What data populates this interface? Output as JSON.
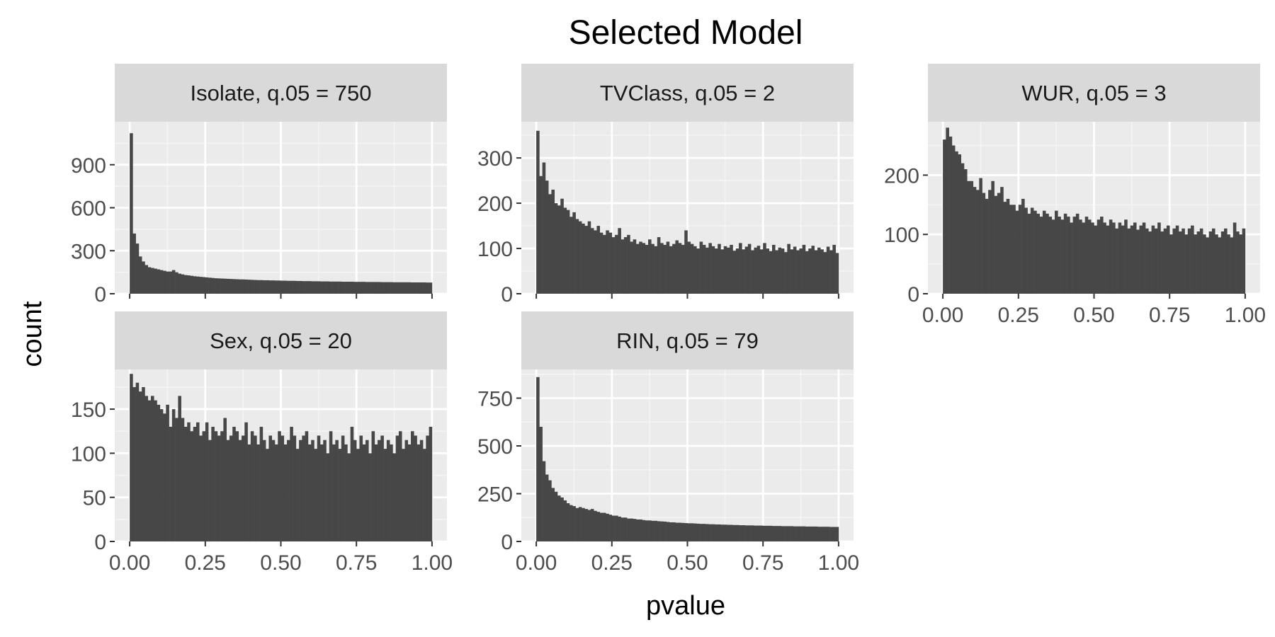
{
  "chart_data": {
    "type": "bar",
    "title": "Selected Model",
    "xlabel": "pvalue",
    "ylabel": "count",
    "grid": true,
    "x_ticks": [
      "0.00",
      "0.25",
      "0.50",
      "0.75",
      "1.00"
    ],
    "x_tick_values": [
      0,
      0.25,
      0.5,
      0.75,
      1.0
    ],
    "xlim": [
      0,
      1
    ],
    "bin_count": 100,
    "panels": [
      {
        "label": "Isolate, q.05 = 750",
        "ylim": [
          0,
          1200
        ],
        "y_ticks": [
          0,
          300,
          600,
          900
        ],
        "y_tick_labels": [
          "0",
          "300",
          "600",
          "900"
        ],
        "show_x_labels": false
      },
      {
        "label": "TVClass, q.05 = 2",
        "ylim": [
          0,
          380
        ],
        "y_ticks": [
          0,
          100,
          200,
          300
        ],
        "y_tick_labels": [
          "0",
          "100",
          "200",
          "300"
        ],
        "show_x_labels": false
      },
      {
        "label": "WUR, q.05 = 3",
        "ylim": [
          0,
          290
        ],
        "y_ticks": [
          0,
          100,
          200
        ],
        "y_tick_labels": [
          "0",
          "100",
          "200"
        ],
        "show_x_labels": true
      },
      {
        "label": "Sex, q.05 = 20",
        "ylim": [
          0,
          195
        ],
        "y_ticks": [
          0,
          50,
          100,
          150
        ],
        "y_tick_labels": [
          "0",
          "50",
          "100",
          "150"
        ],
        "show_x_labels": true
      },
      {
        "label": "RIN, q.05 = 79",
        "ylim": [
          0,
          900
        ],
        "y_ticks": [
          0,
          250,
          500,
          750
        ],
        "y_tick_labels": [
          "0",
          "250",
          "500",
          "750"
        ],
        "show_x_labels": true
      }
    ],
    "series": [
      {
        "values": [
          1120,
          420,
          350,
          260,
          225,
          200,
          185,
          180,
          175,
          170,
          165,
          160,
          155,
          155,
          165,
          150,
          140,
          135,
          130,
          128,
          125,
          122,
          120,
          118,
          116,
          114,
          112,
          110,
          108,
          107,
          106,
          105,
          104,
          103,
          102,
          101,
          100,
          100,
          99,
          98,
          97,
          96,
          95,
          95,
          94,
          94,
          93,
          93,
          92,
          92,
          91,
          91,
          90,
          90,
          90,
          89,
          89,
          88,
          88,
          88,
          87,
          87,
          87,
          86,
          86,
          86,
          85,
          85,
          85,
          85,
          84,
          84,
          84,
          84,
          83,
          83,
          83,
          83,
          82,
          82,
          82,
          82,
          82,
          81,
          81,
          81,
          81,
          80,
          80,
          80,
          80,
          80,
          80,
          79,
          79,
          79,
          79,
          79,
          78,
          78
        ]
      },
      {
        "values": [
          360,
          260,
          290,
          250,
          220,
          230,
          200,
          195,
          210,
          190,
          185,
          170,
          180,
          165,
          160,
          155,
          150,
          160,
          145,
          140,
          150,
          135,
          130,
          140,
          135,
          125,
          130,
          145,
          120,
          125,
          130,
          115,
          120,
          110,
          115,
          112,
          108,
          120,
          110,
          105,
          125,
          112,
          108,
          115,
          105,
          110,
          118,
          112,
          108,
          140,
          115,
          110,
          105,
          100,
          115,
          108,
          102,
          112,
          105,
          100,
          110,
          98,
          105,
          102,
          108,
          95,
          100,
          112,
          98,
          104,
          110,
          96,
          102,
          106,
          98,
          112,
          100,
          94,
          108,
          96,
          102,
          100,
          92,
          110,
          98,
          104,
          96,
          100,
          108,
          94,
          100,
          106,
          96,
          102,
          98,
          92,
          104,
          96,
          108,
          90
        ]
      },
      {
        "values": [
          260,
          280,
          265,
          250,
          240,
          235,
          220,
          210,
          190,
          190,
          180,
          175,
          195,
          170,
          160,
          175,
          190,
          165,
          170,
          180,
          155,
          160,
          150,
          150,
          140,
          150,
          160,
          145,
          135,
          145,
          140,
          135,
          130,
          140,
          135,
          130,
          125,
          140,
          130,
          125,
          135,
          130,
          120,
          130,
          135,
          125,
          120,
          130,
          125,
          120,
          115,
          125,
          130,
          120,
          115,
          125,
          120,
          110,
          120,
          115,
          125,
          110,
          115,
          120,
          108,
          115,
          120,
          110,
          105,
          115,
          110,
          120,
          105,
          110,
          115,
          100,
          110,
          115,
          105,
          110,
          100,
          110,
          115,
          100,
          105,
          110,
          100,
          95,
          105,
          110,
          100,
          95,
          105,
          110,
          100,
          95,
          120,
          105,
          100,
          110
        ]
      },
      {
        "values": [
          190,
          175,
          180,
          170,
          175,
          165,
          160,
          165,
          160,
          155,
          150,
          145,
          155,
          130,
          150,
          140,
          165,
          140,
          130,
          135,
          125,
          130,
          135,
          120,
          125,
          135,
          115,
          130,
          125,
          120,
          125,
          140,
          115,
          120,
          130,
          125,
          115,
          120,
          135,
          110,
          125,
          120,
          110,
          130,
          115,
          105,
          120,
          115,
          110,
          125,
          120,
          110,
          115,
          130,
          120,
          105,
          115,
          120,
          125,
          110,
          115,
          105,
          120,
          110,
          115,
          100,
          125,
          110,
          115,
          105,
          120,
          110,
          100,
          130,
          115,
          105,
          120,
          110,
          115,
          100,
          125,
          110,
          115,
          120,
          105,
          115,
          110,
          100,
          120,
          125,
          105,
          115,
          110,
          125,
          120,
          110,
          115,
          105,
          120,
          130
        ]
      },
      {
        "values": [
          860,
          600,
          420,
          350,
          320,
          280,
          260,
          240,
          230,
          215,
          200,
          190,
          185,
          175,
          180,
          175,
          170,
          165,
          170,
          160,
          155,
          150,
          150,
          145,
          140,
          135,
          135,
          130,
          125,
          125,
          120,
          120,
          118,
          115,
          115,
          112,
          110,
          110,
          108,
          108,
          106,
          105,
          104,
          102,
          100,
          100,
          98,
          98,
          97,
          96,
          95,
          95,
          94,
          93,
          92,
          92,
          91,
          90,
          90,
          89,
          89,
          88,
          88,
          87,
          87,
          86,
          86,
          85,
          85,
          84,
          84,
          84,
          83,
          83,
          83,
          82,
          82,
          82,
          81,
          81,
          81,
          80,
          80,
          80,
          80,
          79,
          79,
          79,
          79,
          78,
          78,
          78,
          78,
          77,
          77,
          77,
          77,
          76,
          76,
          76
        ]
      }
    ]
  }
}
